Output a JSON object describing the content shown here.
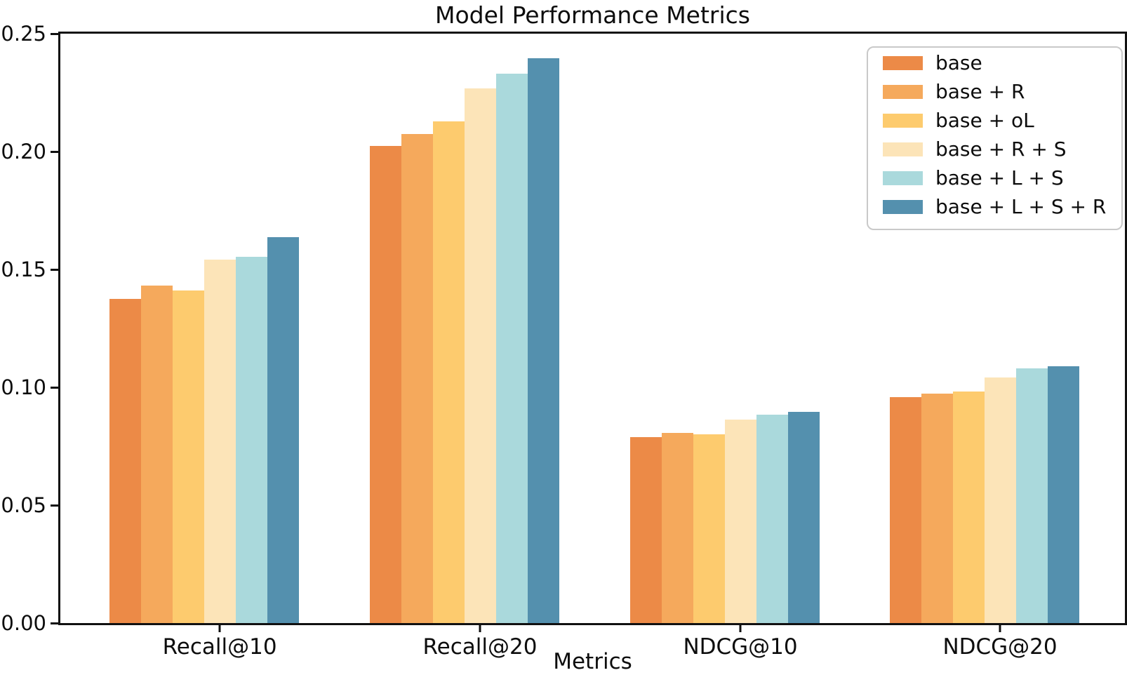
{
  "figure": {
    "title": "Model Performance Metrics",
    "xlabel": "Metrics"
  },
  "chart_data": {
    "type": "bar",
    "title": "Model Performance Metrics",
    "xlabel": "Metrics",
    "ylabel": "",
    "ylim": [
      0,
      0.25
    ],
    "yticks": [
      "0.00",
      "0.05",
      "0.10",
      "0.15",
      "0.20",
      "0.25"
    ],
    "grid": false,
    "legend_position": "upper right",
    "categories": [
      "Recall@10",
      "Recall@20",
      "NDCG@10",
      "NDCG@20"
    ],
    "series": [
      {
        "name": "base",
        "color": "#EC8A47",
        "values": [
          0.1375,
          0.2025,
          0.0788,
          0.0958
        ]
      },
      {
        "name": "base + R",
        "color": "#F5A95C",
        "values": [
          0.1432,
          0.2073,
          0.0806,
          0.0974
        ]
      },
      {
        "name": "base + oL",
        "color": "#FDCB6E",
        "values": [
          0.1412,
          0.2127,
          0.08,
          0.0982
        ]
      },
      {
        "name": "base + R + S",
        "color": "#FCE4B8",
        "values": [
          0.1542,
          0.2268,
          0.0862,
          0.1042
        ]
      },
      {
        "name": "base + L + S",
        "color": "#AAD9DC",
        "values": [
          0.1555,
          0.233,
          0.0885,
          0.108
        ]
      },
      {
        "name": "base + L + S + R",
        "color": "#5490AE",
        "values": [
          0.1636,
          0.2395,
          0.0897,
          0.1088
        ]
      }
    ]
  }
}
